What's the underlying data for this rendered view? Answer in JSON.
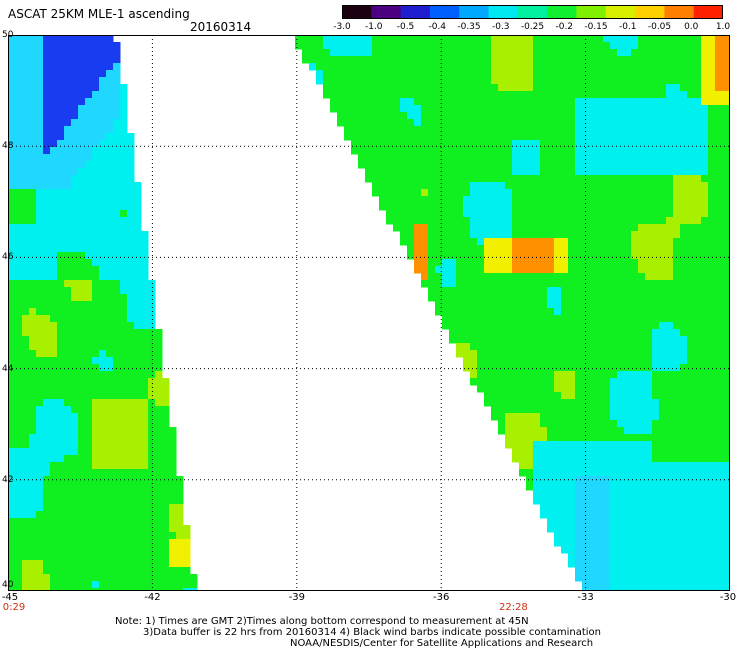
{
  "header": {
    "title": "ASCAT 25KM MLE-1 ascending",
    "date": "20160314"
  },
  "colorbar": {
    "labels": [
      "-3.0",
      "-1.0",
      "-0.5",
      "-0.4",
      "-0.35",
      "-0.3",
      "-0.25",
      "-0.2",
      "-0.15",
      "-0.1",
      "-0.05",
      "0.0",
      "1.0"
    ],
    "colors": [
      "#1a0010",
      "#4b0082",
      "#1f1fd0",
      "#0060ff",
      "#00a8ff",
      "#00e8f0",
      "#00f0a0",
      "#10f030",
      "#80f000",
      "#d8f000",
      "#ffd000",
      "#ff8000",
      "#ff2000"
    ]
  },
  "axes": {
    "x_ticks": [
      "-45",
      "-42",
      "-39",
      "-36",
      "-33",
      "-30"
    ],
    "y_ticks": [
      "50",
      "48",
      "46",
      "44",
      "42",
      "40"
    ],
    "x_range": [
      -45,
      -30
    ],
    "y_range": [
      40,
      50
    ]
  },
  "times": [
    {
      "label": "0:29",
      "lon": -45
    },
    {
      "label": "22:28",
      "lon": -34.5
    }
  ],
  "notes": [
    "Note: 1) Times are GMT 2)Times along bottom correspond to measurement at 45N",
    "3)Data buffer is 22 hrs from 20160314 4) Black wind barbs indicate possible contamination",
    "NOAA/NESDIS/Center for Satellite Applications and Research"
  ],
  "palette": {
    "blue": "#1a3cf0",
    "lightblue": "#20d8ff",
    "cyan": "#00f0f0",
    "green": "#10f020",
    "yellowgreen": "#a8f000",
    "yellow": "#f0f000",
    "orange": "#ff9000",
    "red": "#ff4000"
  }
}
